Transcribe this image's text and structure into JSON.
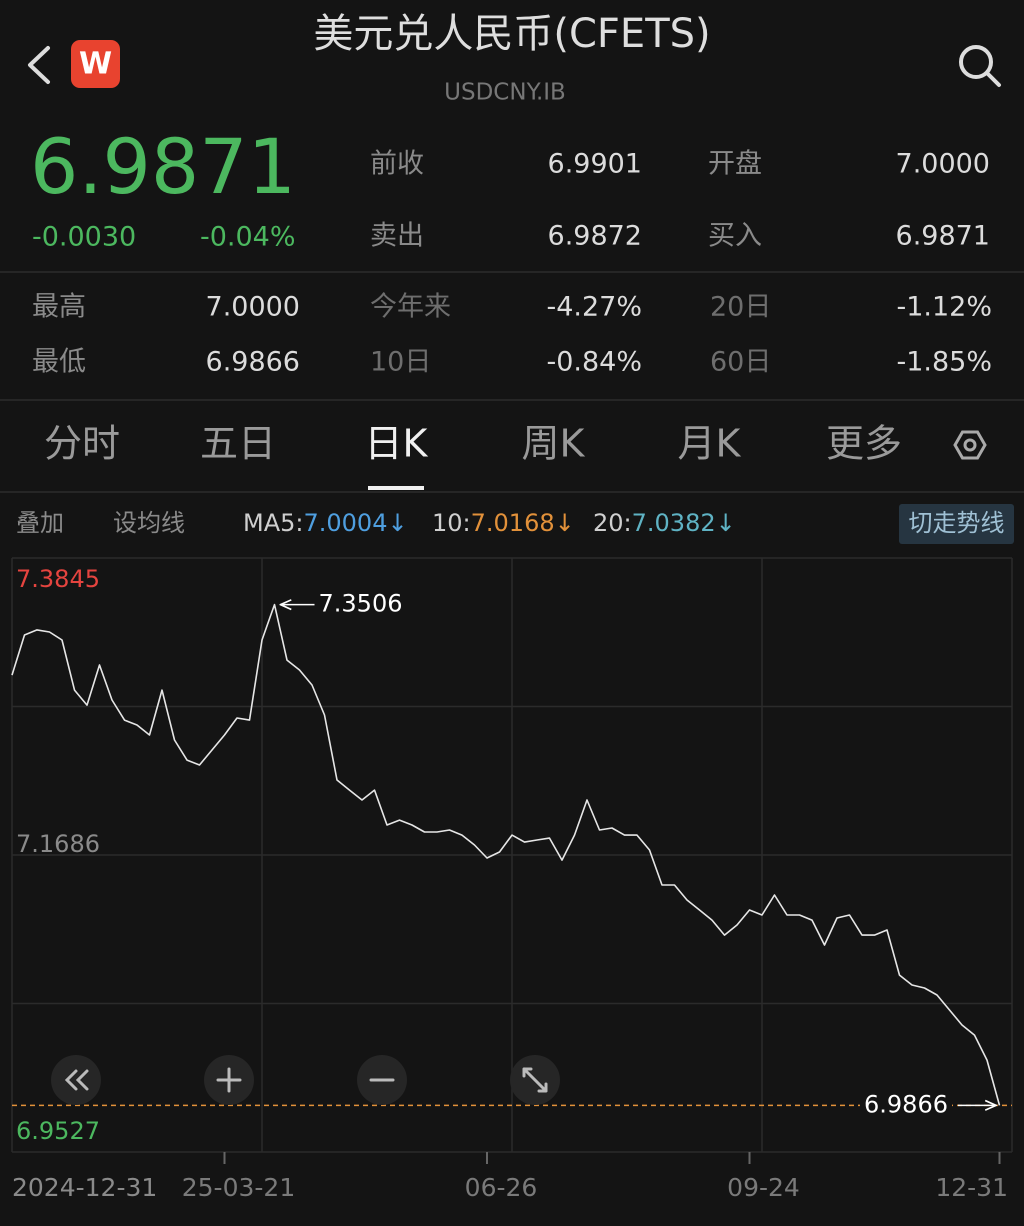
{
  "header": {
    "title": "美元兑人民币(CFETS)",
    "code": "USDCNY.IB",
    "logo": "W"
  },
  "quote": {
    "price": "6.9871",
    "change": "-0.0030",
    "change_pct": "-0.04%"
  },
  "stats_top": [
    [
      {
        "label": "前收",
        "value": "6.9901"
      },
      {
        "label": "开盘",
        "value": "7.0000"
      }
    ],
    [
      {
        "label": "卖出",
        "value": "6.9872"
      },
      {
        "label": "买入",
        "value": "6.9871"
      }
    ]
  ],
  "stats_bottom": [
    [
      {
        "label": "最高",
        "value": "7.0000"
      },
      {
        "label": "今年来",
        "value": "-4.27%"
      },
      {
        "label": "20日",
        "value": "-1.12%"
      }
    ],
    [
      {
        "label": "最低",
        "value": "6.9866"
      },
      {
        "label": "10日",
        "value": "-0.84%"
      },
      {
        "label": "60日",
        "value": "-1.85%"
      }
    ]
  ],
  "tabs": {
    "items": [
      "分时",
      "五日",
      "日K",
      "周K",
      "月K",
      "更多"
    ],
    "active": 2
  },
  "indicators": {
    "overlay": "叠加",
    "set_ma": "设均线",
    "ma": [
      {
        "label": "MA5:",
        "value": "7.0004↓",
        "color": "#4f9fe0"
      },
      {
        "label": "10:",
        "value": "7.0168↓",
        "color": "#e2913a"
      },
      {
        "label": "20:",
        "value": "7.0382↓",
        "color": "#5fb3c4"
      }
    ],
    "toggle": "切走势线"
  },
  "chart_data": {
    "type": "line",
    "categories": [
      "2024-12-31",
      null,
      null,
      null,
      null,
      null,
      null,
      null,
      null,
      null,
      null,
      null,
      null,
      null,
      null,
      null,
      null,
      "25-03-21",
      null,
      null,
      null,
      null,
      null,
      null,
      null,
      null,
      null,
      null,
      null,
      null,
      null,
      null,
      null,
      null,
      null,
      null,
      null,
      null,
      "06-26",
      null,
      null,
      null,
      null,
      null,
      null,
      null,
      null,
      null,
      null,
      null,
      null,
      null,
      null,
      null,
      null,
      null,
      null,
      null,
      null,
      "09-24",
      null,
      null,
      null,
      null,
      null,
      null,
      null,
      null,
      null,
      null,
      null,
      null,
      null,
      null,
      null,
      null,
      null,
      null,
      null,
      "12-31"
    ],
    "series": [
      {
        "color": "#e6e6e6",
        "values": [
          7.2994,
          7.3285,
          7.3322,
          7.3307,
          7.3249,
          7.2885,
          7.2776,
          7.3067,
          7.2813,
          7.2667,
          7.2631,
          7.2558,
          7.2885,
          7.2522,
          7.2376,
          7.234,
          7.2449,
          7.2558,
          7.2682,
          7.2667,
          7.3249,
          7.3506,
          7.3103,
          7.3031,
          7.2922,
          7.2704,
          7.2231,
          7.2158,
          7.2086,
          7.2158,
          7.1904,
          7.194,
          7.1904,
          7.1853,
          7.1853,
          7.1868,
          7.1831,
          7.1759,
          7.1664,
          7.1708,
          7.1831,
          7.178,
          7.1795,
          7.1809,
          7.1649,
          7.1831,
          7.2086,
          7.1868,
          7.1882,
          7.1831,
          7.1831,
          7.1722,
          7.1468,
          7.1468,
          7.1359,
          7.1286,
          7.1213,
          7.1104,
          7.1177,
          7.1286,
          7.125,
          7.1395,
          7.125,
          7.125,
          7.1213,
          7.1032,
          7.1228,
          7.125,
          7.1104,
          7.1104,
          7.1141,
          7.0813,
          7.0741,
          7.0719,
          7.0668,
          7.0559,
          7.045,
          7.0377,
          7.0195,
          6.9866
        ]
      }
    ],
    "ylim": [
      6.9527,
      7.3845
    ],
    "yticks": [
      7.3845,
      7.1686,
      6.9527
    ],
    "ytick_colors": [
      "#e5443f",
      "#8a8a8a",
      "#4cb85f"
    ],
    "last_line_color": "#e2913a",
    "grid": true
  }
}
